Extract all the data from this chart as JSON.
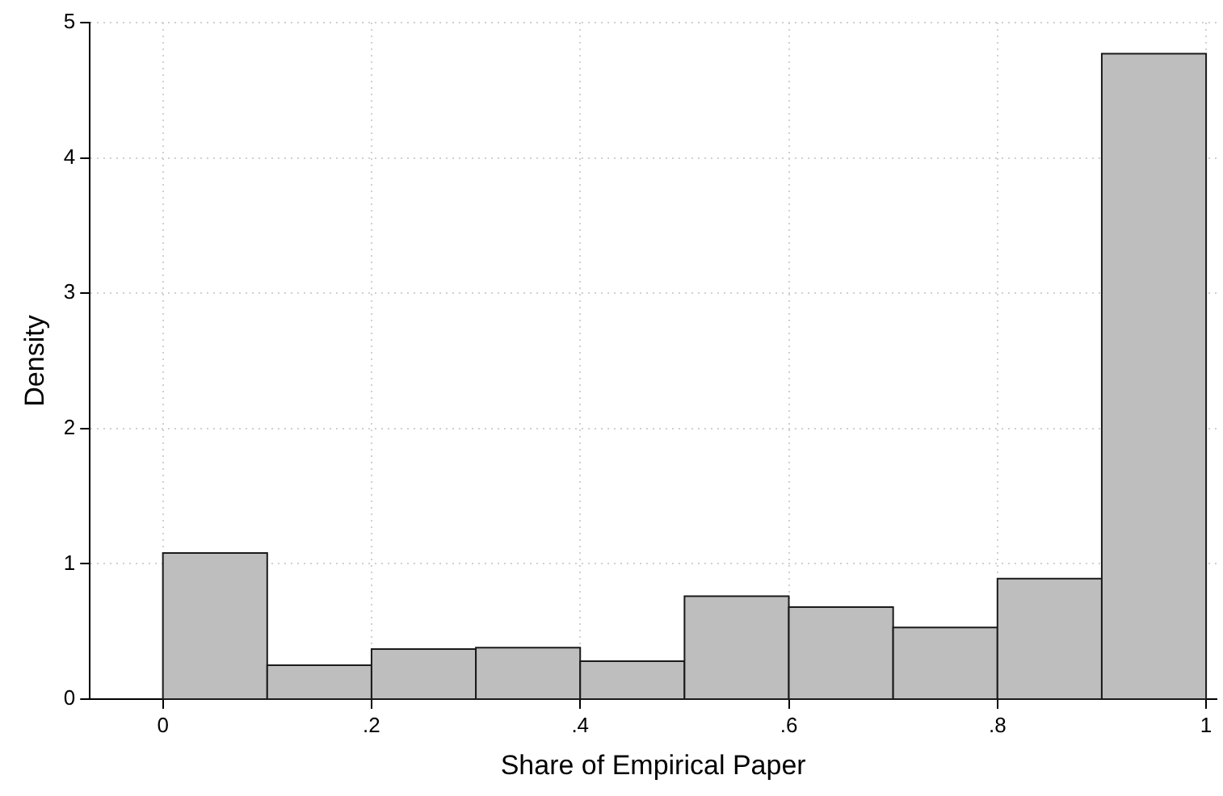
{
  "chart_data": {
    "type": "histogram",
    "xlabel": "Share of Empirical Paper",
    "ylabel": "Density",
    "bins": [
      0,
      0.1,
      0.2,
      0.3,
      0.4,
      0.5,
      0.6,
      0.7,
      0.8,
      0.9,
      1
    ],
    "values": [
      1.08,
      0.25,
      0.37,
      0.38,
      0.28,
      0.76,
      0.68,
      0.53,
      0.89,
      4.77
    ],
    "color": "#bebebe",
    "xlim": [
      -0.07,
      1.01
    ],
    "xticks": [
      0,
      {
        "value": 0.2,
        "label": ".2"
      },
      {
        "value": 0.4,
        "label": ".4"
      },
      {
        "value": 0.6,
        "label": ".6"
      },
      {
        "value": 0.8,
        "label": ".8"
      },
      1
    ],
    "ylim": [
      0,
      5
    ],
    "yticks": [
      0,
      1,
      2,
      3,
      4,
      5
    ],
    "grid": true
  }
}
